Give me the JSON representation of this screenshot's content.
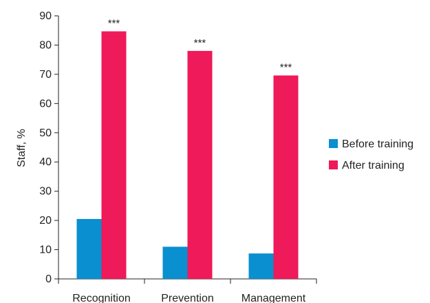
{
  "chart_data": {
    "type": "bar",
    "title": "",
    "xlabel": "",
    "ylabel": "Staff, %",
    "ylim": [
      0,
      90
    ],
    "yticks": [
      0,
      10,
      20,
      30,
      40,
      50,
      60,
      70,
      80,
      90
    ],
    "categories": [
      "Recognition",
      "Prevention",
      "Management"
    ],
    "series": [
      {
        "name": "Before training",
        "color": "#0a8fd0",
        "values": [
          20.5,
          11,
          8.7
        ]
      },
      {
        "name": "After training",
        "color": "#ee1a5a",
        "values": [
          84.7,
          78,
          69.6
        ]
      }
    ],
    "annotations": [
      "***",
      "***",
      "***"
    ],
    "grid": false,
    "legend_position": "right"
  }
}
